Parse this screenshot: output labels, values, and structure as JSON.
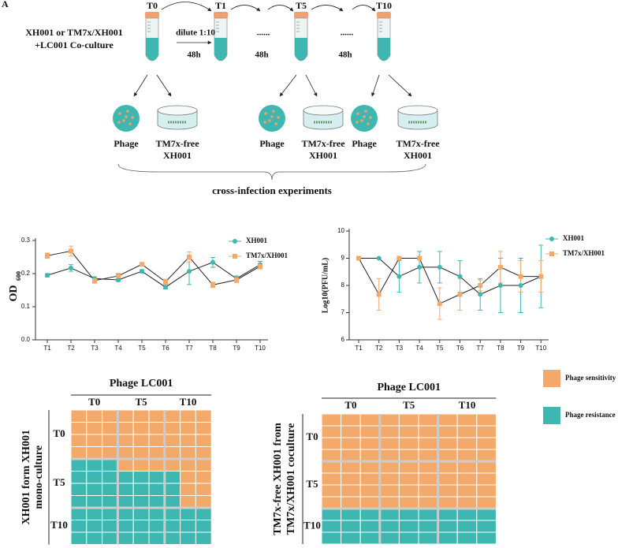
{
  "panel_label": "A",
  "diagram": {
    "timepoints": [
      "T0",
      "T1",
      "T5",
      "T10"
    ],
    "culture": [
      "XH001 or TM7x/XH001",
      "+LC001 Co-culture"
    ],
    "steps": [
      {
        "label": "dilute 1:10",
        "time": "48h"
      },
      {
        "label": "......",
        "time": "48h"
      },
      {
        "label": "......",
        "time": "48h"
      }
    ],
    "samples": [
      {
        "phage": "Phage",
        "free": [
          "TM7x-free",
          "XH001"
        ]
      },
      {
        "phage": "Phage",
        "free": [
          "TM7x-free",
          "XH001"
        ]
      },
      {
        "phage": "Phage",
        "free": [
          "TM7x-free",
          "XH001"
        ]
      }
    ],
    "summary": "cross-infection experiments"
  },
  "heatmap_legend": [
    {
      "name": "Phage sensitivity",
      "color": "#f3a96a"
    },
    {
      "name": "Phage resistance",
      "color": "#3db7b0"
    }
  ],
  "chart_data": [
    {
      "type": "line",
      "y_label": "OD",
      "y_label_sub": "600",
      "categories": [
        "T1",
        "T2",
        "T3",
        "T4",
        "T5",
        "T6",
        "T7",
        "T8",
        "T9",
        "T10"
      ],
      "ylim": [
        0,
        0.3
      ],
      "yticks": [
        {
          "value": 0,
          "label": "0.0"
        },
        0.1,
        0.2,
        0.3
      ],
      "series": [
        {
          "name": "XH001",
          "color": "#3db7b0",
          "values": [
            0.195,
            0.217,
            0.185,
            0.181,
            0.207,
            0.159,
            0.207,
            0.234,
            0.185,
            0.227
          ],
          "errors": [
            0.005,
            0.01,
            0.005,
            0.005,
            0.005,
            0.005,
            0.04,
            0.015,
            0.008,
            0.01
          ]
        },
        {
          "name": "TM7x/XH001",
          "color": "#f3a96a",
          "values": [
            0.254,
            0.268,
            0.179,
            0.193,
            0.228,
            0.175,
            0.25,
            0.166,
            0.181,
            0.222
          ],
          "errors": [
            0.008,
            0.015,
            0.008,
            0.008,
            0.005,
            0.008,
            0.015,
            0.008,
            0.008,
            0.008
          ]
        }
      ]
    },
    {
      "type": "line",
      "y_label": "Log10(PFU/mL)",
      "categories": [
        "T1",
        "T2",
        "T3",
        "T4",
        "T5",
        "T6",
        "T7",
        "T8",
        "T9",
        "T10"
      ],
      "ylim": [
        6,
        10
      ],
      "yticks": [
        6,
        7,
        8,
        9,
        10
      ],
      "series": [
        {
          "name": "XH001",
          "color": "#3db7b0",
          "values": [
            9,
            9,
            8.33,
            8.67,
            8.67,
            8.33,
            7.67,
            8,
            8,
            8.33
          ],
          "errors": [
            0,
            0,
            0.58,
            0.58,
            0.58,
            0.58,
            0.58,
            1,
            1,
            1.15
          ]
        },
        {
          "name": "TM7x/XH001",
          "color": "#f3a96a",
          "values": [
            9,
            7.67,
            9,
            9,
            7.33,
            7.67,
            8,
            8.67,
            8.33,
            8.33
          ],
          "errors": [
            0,
            0.58,
            0,
            0,
            0.58,
            0.58,
            0.2,
            0.58,
            0.58,
            0.58
          ]
        }
      ]
    },
    {
      "type": "heatmap",
      "column_title": "Phage LC001",
      "column_groups": [
        "T0",
        "T5",
        "T10"
      ],
      "row_groups": [
        "T0",
        "T5",
        "T10"
      ],
      "row_title": [
        "XH001 form XH001",
        "mono-culture"
      ],
      "values": [
        [
          0,
          0,
          0,
          0,
          0,
          0,
          0,
          0,
          0
        ],
        [
          0,
          0,
          0,
          0,
          0,
          0,
          0,
          0,
          0
        ],
        [
          0,
          0,
          0,
          0,
          0,
          0,
          0,
          0,
          0
        ],
        [
          0,
          0,
          0,
          0,
          0,
          0,
          0,
          0,
          0
        ],
        [
          1,
          1,
          1,
          0,
          0,
          0,
          0,
          0,
          0
        ],
        [
          1,
          1,
          1,
          1,
          1,
          1,
          1,
          0,
          0
        ],
        [
          1,
          1,
          1,
          1,
          1,
          1,
          1,
          0,
          0
        ],
        [
          1,
          1,
          1,
          1,
          1,
          1,
          1,
          0,
          0
        ],
        [
          1,
          1,
          1,
          1,
          1,
          1,
          1,
          1,
          1
        ],
        [
          1,
          1,
          1,
          1,
          1,
          1,
          1,
          1,
          1
        ],
        [
          1,
          1,
          1,
          1,
          1,
          1,
          1,
          1,
          1
        ]
      ]
    },
    {
      "type": "heatmap",
      "column_title": "Phage LC001",
      "column_groups": [
        "T0",
        "T5",
        "T10"
      ],
      "row_groups": [
        "T0",
        "T5",
        "T10"
      ],
      "row_title": [
        "TM7x-free XH001 from",
        "TM7x/XH001 coculture"
      ],
      "values": [
        [
          0,
          0,
          0,
          0,
          0,
          0,
          0,
          0,
          0
        ],
        [
          0,
          0,
          0,
          0,
          0,
          0,
          0,
          0,
          0
        ],
        [
          0,
          0,
          0,
          0,
          0,
          0,
          0,
          0,
          0
        ],
        [
          0,
          0,
          0,
          0,
          0,
          0,
          0,
          0,
          0
        ],
        [
          0,
          0,
          0,
          0,
          0,
          0,
          0,
          0,
          0
        ],
        [
          0,
          0,
          0,
          0,
          0,
          0,
          0,
          0,
          0
        ],
        [
          0,
          0,
          0,
          0,
          0,
          0,
          0,
          0,
          0
        ],
        [
          0,
          0,
          0,
          0,
          0,
          0,
          0,
          0,
          0
        ],
        [
          1,
          1,
          1,
          1,
          1,
          1,
          1,
          1,
          1
        ],
        [
          1,
          1,
          1,
          1,
          1,
          1,
          1,
          1,
          1
        ],
        [
          1,
          1,
          1,
          1,
          1,
          1,
          1,
          1,
          1
        ]
      ]
    }
  ]
}
